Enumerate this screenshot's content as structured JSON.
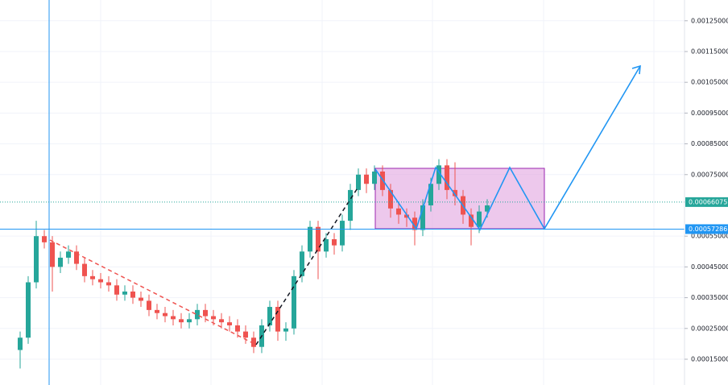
{
  "chart_data": {
    "type": "candlestick",
    "categories": [
      null,
      null,
      null,
      null,
      null,
      null,
      null,
      null,
      null,
      null,
      null,
      null,
      null,
      null,
      null,
      null,
      null,
      null,
      null,
      null,
      null,
      null,
      null,
      null,
      null,
      null,
      null,
      null,
      null,
      null,
      null,
      null,
      null,
      null,
      null,
      null,
      null,
      null,
      null,
      null,
      null,
      null,
      null,
      null,
      null,
      null,
      null,
      null,
      null,
      null,
      null,
      null,
      null,
      null,
      null,
      null,
      null,
      null,
      null
    ],
    "open": [
      0.00018,
      0.00022,
      0.0004,
      0.00055,
      0.00053,
      0.00045,
      0.00048,
      0.0005,
      0.00046,
      0.00042,
      0.00041,
      0.0004,
      0.00039,
      0.00036,
      0.00037,
      0.00035,
      0.00034,
      0.00031,
      0.0003,
      0.00029,
      0.00028,
      0.00027,
      0.00028,
      0.00031,
      0.00029,
      0.00028,
      0.00027,
      0.00026,
      0.00024,
      0.00022,
      0.00019,
      0.00026,
      0.00032,
      0.00024,
      0.00025,
      0.00042,
      0.0005,
      0.00058,
      0.0005,
      0.00054,
      0.00052,
      0.0006,
      0.0007,
      0.00075,
      0.00072,
      0.00076,
      0.0007,
      0.00064,
      0.00062,
      0.00061,
      0.00057,
      0.00065,
      0.00072,
      0.00078,
      0.0007,
      0.00068,
      0.00062,
      0.00058,
      0.00063
    ],
    "high": [
      0.00024,
      0.00042,
      0.0006,
      0.00057,
      0.00055,
      0.0005,
      0.00052,
      0.00052,
      0.00048,
      0.00044,
      0.00043,
      0.00042,
      0.00041,
      0.00039,
      0.00039,
      0.00037,
      0.00036,
      0.00033,
      0.00032,
      0.00031,
      0.0003,
      0.0003,
      0.00033,
      0.00033,
      0.00031,
      0.0003,
      0.00029,
      0.00028,
      0.00026,
      0.00024,
      0.00028,
      0.00034,
      0.00034,
      0.00027,
      0.00044,
      0.00052,
      0.0006,
      0.0006,
      0.00056,
      0.00056,
      0.00062,
      0.00072,
      0.00077,
      0.00077,
      0.00078,
      0.00078,
      0.00072,
      0.00066,
      0.00064,
      0.00063,
      0.00067,
      0.00074,
      0.0008,
      0.0008,
      0.00079,
      0.0007,
      0.00064,
      0.00065,
      0.00067
    ],
    "low": [
      0.00012,
      0.0002,
      0.00038,
      0.00051,
      0.00037,
      0.00043,
      0.00046,
      0.00044,
      0.0004,
      0.00039,
      0.00038,
      0.00037,
      0.00034,
      0.00034,
      0.00033,
      0.00032,
      0.00029,
      0.00028,
      0.00027,
      0.00026,
      0.00025,
      0.00025,
      0.00026,
      0.00027,
      0.00026,
      0.00025,
      0.00024,
      0.00022,
      0.0002,
      0.00017,
      0.00017,
      0.00024,
      0.00021,
      0.00021,
      0.00023,
      0.0004,
      0.00048,
      0.00041,
      0.00048,
      0.00049,
      0.0005,
      0.00057,
      0.00068,
      0.00069,
      0.0007,
      0.00068,
      0.00061,
      0.00059,
      0.00058,
      0.00052,
      0.00055,
      0.00063,
      0.0007,
      0.00067,
      0.00065,
      0.00059,
      0.00052,
      0.00056,
      0.00061
    ],
    "close": [
      0.00022,
      0.0004,
      0.00055,
      0.00053,
      0.00045,
      0.00048,
      0.0005,
      0.00046,
      0.00042,
      0.00041,
      0.0004,
      0.00039,
      0.00036,
      0.00037,
      0.00035,
      0.00034,
      0.00031,
      0.0003,
      0.00029,
      0.00028,
      0.00027,
      0.00028,
      0.00031,
      0.00029,
      0.00028,
      0.00027,
      0.00026,
      0.00024,
      0.00022,
      0.00019,
      0.00026,
      0.00032,
      0.00024,
      0.00025,
      0.00042,
      0.0005,
      0.00058,
      0.0005,
      0.00054,
      0.00052,
      0.0006,
      0.0007,
      0.00075,
      0.00072,
      0.00076,
      0.0007,
      0.00064,
      0.00062,
      0.00061,
      0.00057,
      0.00065,
      0.00072,
      0.00078,
      0.0007,
      0.00068,
      0.00062,
      0.00058,
      0.00063,
      0.00065
    ],
    "up_color": "#26a69a",
    "down_color": "#ef5350",
    "ylim": [
      6.62e-05,
      0.0013175
    ],
    "yticks": [
      {
        "value": 0.00015,
        "label": "0.00015000"
      },
      {
        "value": 0.00025,
        "label": "0.00025000"
      },
      {
        "value": 0.00035,
        "label": "0.00035000"
      },
      {
        "value": 0.00045,
        "label": "0.00045000"
      },
      {
        "value": 0.00055,
        "label": "0.00055000"
      },
      {
        "value": 0.00075,
        "label": "0.00075000"
      },
      {
        "value": 0.00085,
        "label": "0.00085000"
      },
      {
        "value": 0.00095,
        "label": "0.00095000"
      },
      {
        "value": 0.00105,
        "label": "0.00105000"
      },
      {
        "value": 0.00115,
        "label": "0.00115000"
      },
      {
        "value": 0.00125,
        "label": "0.00125000"
      }
    ],
    "grid": true,
    "price_lines": [
      {
        "value": 0.00066075,
        "color": "#26a69a",
        "style": "dotted"
      },
      {
        "value": 0.00057286,
        "color": "#2196f3",
        "style": "solid"
      }
    ]
  }
}
